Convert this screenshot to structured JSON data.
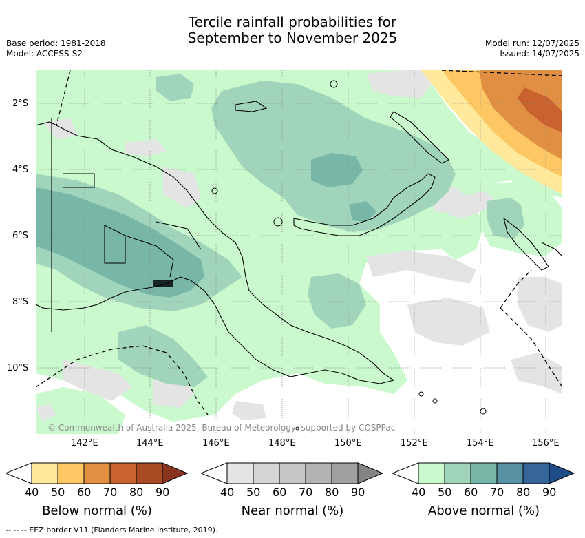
{
  "title": {
    "line1": "Tercile rainfall probabilities for",
    "line2": "September to November 2025"
  },
  "meta_left": {
    "base_period": "Base period: 1981-2018",
    "model": "Model: ACCESS-S2"
  },
  "meta_right": {
    "model_run": "Model run: 12/07/2025",
    "issued": "Issued: 14/07/2025"
  },
  "y_ticks": [
    "2°S",
    "4°S",
    "6°S",
    "8°S",
    "10°S"
  ],
  "x_ticks": [
    "142°E",
    "144°E",
    "146°E",
    "148°E",
    "150°E",
    "152°E",
    "154°E",
    "156°E"
  ],
  "copyright": "© Commonwealth of Australia 2025, Bureau of Meteorology, supported by COSPPac",
  "colorbars": [
    {
      "label": "Below normal (%)",
      "ticks": [
        "40",
        "50",
        "60",
        "70",
        "80",
        "90"
      ],
      "colors": [
        "#ffffff",
        "#fee99d",
        "#fdc864",
        "#e08f43",
        "#c9622e",
        "#a84b25",
        "#8a3420"
      ]
    },
    {
      "label": "Near normal (%)",
      "ticks": [
        "40",
        "50",
        "60",
        "70",
        "80",
        "90"
      ],
      "colors": [
        "#ffffff",
        "#e4e4e4",
        "#d5d5d5",
        "#c6c6c6",
        "#b3b3b3",
        "#a0a0a0",
        "#848484"
      ]
    },
    {
      "label": "Above normal (%)",
      "ticks": [
        "40",
        "50",
        "60",
        "70",
        "80",
        "90"
      ],
      "colors": [
        "#ffffff",
        "#c9f9cc",
        "#a1d5bb",
        "#78b6a8",
        "#5891a3",
        "#356599",
        "#1f4d87"
      ]
    }
  ],
  "footnote": "-- -- -- EEZ border V11 (Flanders Marine Institute, 2019).",
  "colors": {
    "above40": "#c9f9cc",
    "above50": "#a1d5bb",
    "above60": "#78b6a8",
    "near40": "#e4e4e4",
    "below40": "#fee99d",
    "below50": "#fdc864",
    "below60": "#e08f43",
    "below70": "#c9622e"
  }
}
